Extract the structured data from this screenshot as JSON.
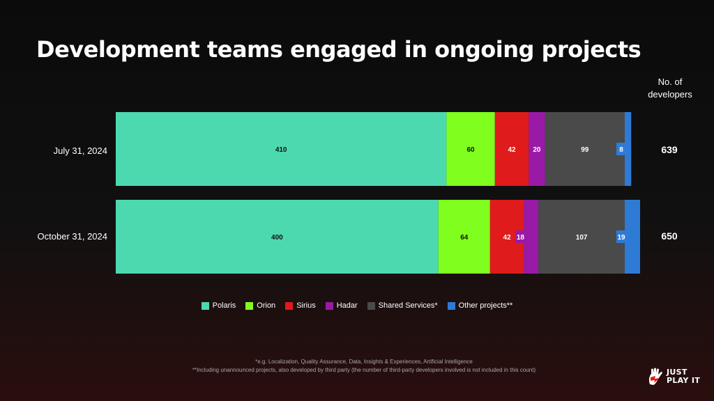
{
  "title": "Development teams engaged in ongoing projects",
  "total_header": [
    "No. of",
    "developers"
  ],
  "chart_data": {
    "type": "bar",
    "orientation": "horizontal",
    "stacked": true,
    "categories": [
      "July 31, 2024",
      "October 31, 2024"
    ],
    "series": [
      {
        "name": "Polaris",
        "color": "#4dd9b0",
        "values": [
          410,
          400
        ]
      },
      {
        "name": "Orion",
        "color": "#80ff1f",
        "values": [
          60,
          64
        ]
      },
      {
        "name": "Sirius",
        "color": "#e01b1b",
        "values": [
          42,
          42
        ]
      },
      {
        "name": "Hadar",
        "color": "#9a1aa8",
        "values": [
          20,
          18
        ]
      },
      {
        "name": "Shared Services*",
        "color": "#4a4a4a",
        "values": [
          99,
          107
        ]
      },
      {
        "name": "Other projects**",
        "color": "#2e7bd6",
        "values": [
          8,
          19
        ]
      }
    ],
    "totals": [
      639,
      650
    ],
    "legend_position": "bottom",
    "grid": false
  },
  "footnotes": [
    "*e.g. Localization, Quality Assurance, Data, Insights & Experiences, Artificial Intelligence",
    "**Including unannounced projects, also developed by third party (the number of third-party developers involved is not included in this count)"
  ],
  "logo": {
    "line1": "JUST",
    "line2": "PLAY IT"
  }
}
